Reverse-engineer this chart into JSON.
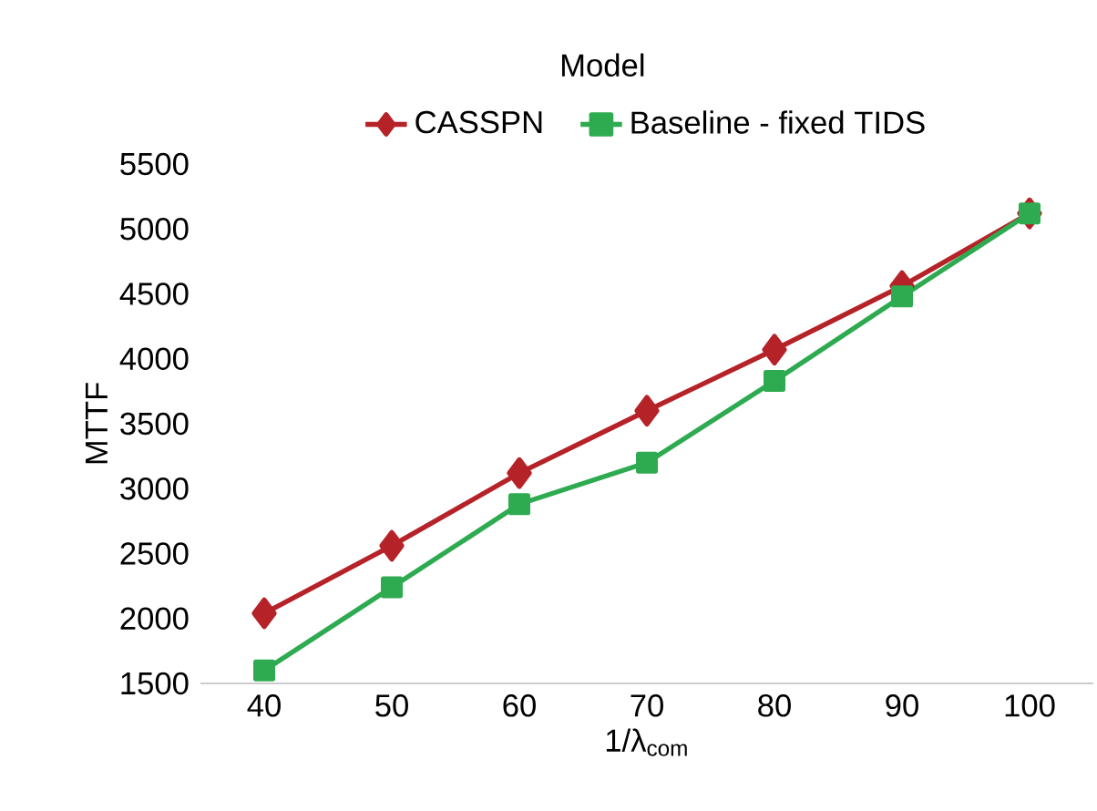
{
  "chart_data": {
    "type": "line",
    "legend_title": "Model",
    "xlabel": "1/λ$_{com}$",
    "ylabel": "MTTF",
    "categories": [
      "40",
      "50",
      "60",
      "70",
      "80",
      "90",
      "100"
    ],
    "series": [
      {
        "name": "CASSPN",
        "color": "#b52228",
        "marker": "diamond",
        "values": [
          2040,
          2560,
          3120,
          3600,
          4070,
          4560,
          5120
        ]
      },
      {
        "name": "Baseline - fixed TIDS",
        "color": "#2eaa50",
        "marker": "square",
        "values": [
          1600,
          2240,
          2880,
          3200,
          3830,
          4480,
          5120
        ]
      }
    ],
    "ylim": [
      1500,
      5500
    ],
    "yticks": [
      1500,
      2000,
      2500,
      3000,
      3500,
      4000,
      4500,
      5000,
      5500
    ],
    "legend": "top",
    "grid": false
  }
}
